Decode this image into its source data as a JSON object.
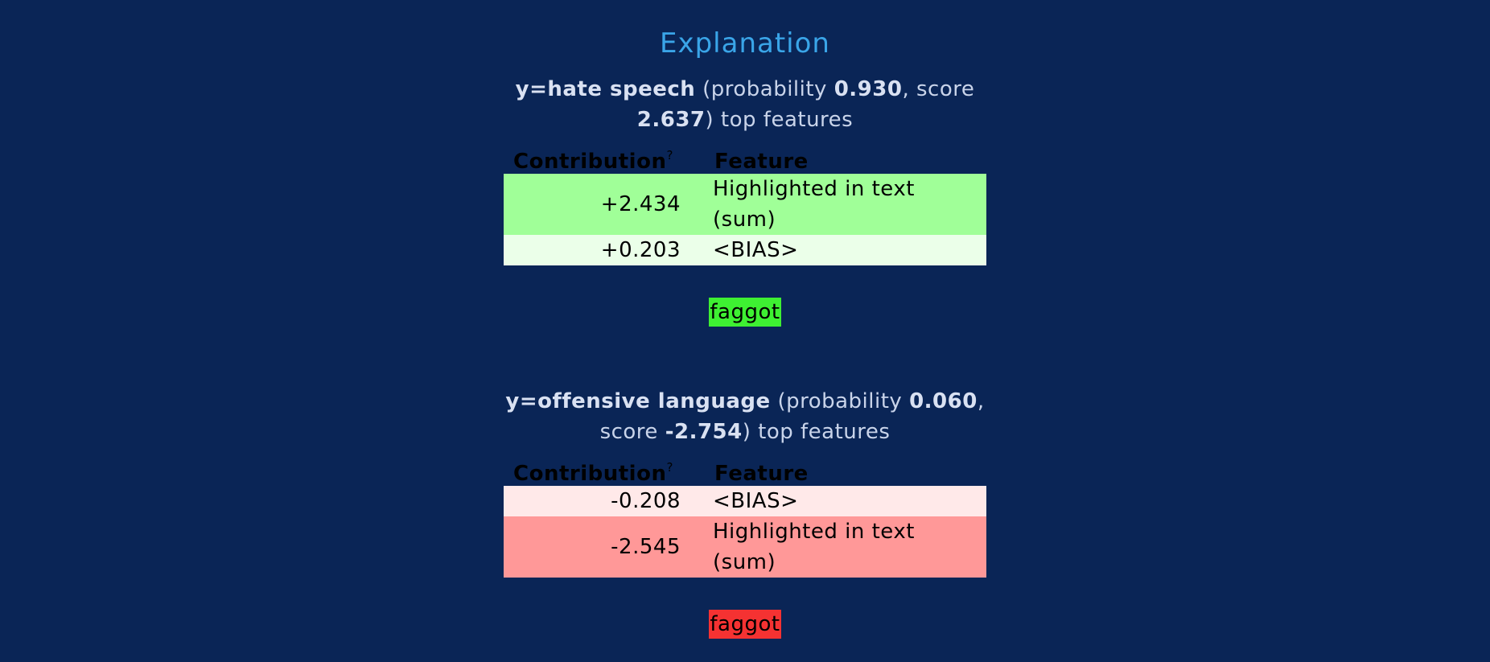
{
  "title": "Explanation",
  "header": {
    "contribution": "Contribution",
    "question_mark": "?",
    "feature": "Feature"
  },
  "sections": [
    {
      "heading": {
        "label": "y=hate speech",
        "open_prob": "(probability",
        "probability": "0.930",
        "score_label": ", score",
        "score": "2.637",
        "tail": ") top features"
      },
      "rows": [
        {
          "value": "+2.434",
          "feature": "Highlighted in text (sum)",
          "bg": "#a0ff98"
        },
        {
          "value": "+0.203",
          "feature": "<BIAS>",
          "bg": "#ebffe9"
        }
      ],
      "highlight": {
        "text": "faggot",
        "bg": "#3ef032"
      }
    },
    {
      "heading": {
        "label": "y=offensive language",
        "open_prob": "(probability",
        "probability": "0.060",
        "score_label": ", score",
        "score": "-2.754",
        "tail": ") top features"
      },
      "rows": [
        {
          "value": "-0.208",
          "feature": "<BIAS>",
          "bg": "#ffe9e9"
        },
        {
          "value": "-2.545",
          "feature": "Highlighted in text (sum)",
          "bg": "#ff9898"
        }
      ],
      "highlight": {
        "text": "faggot",
        "bg": "#f53232"
      }
    }
  ]
}
